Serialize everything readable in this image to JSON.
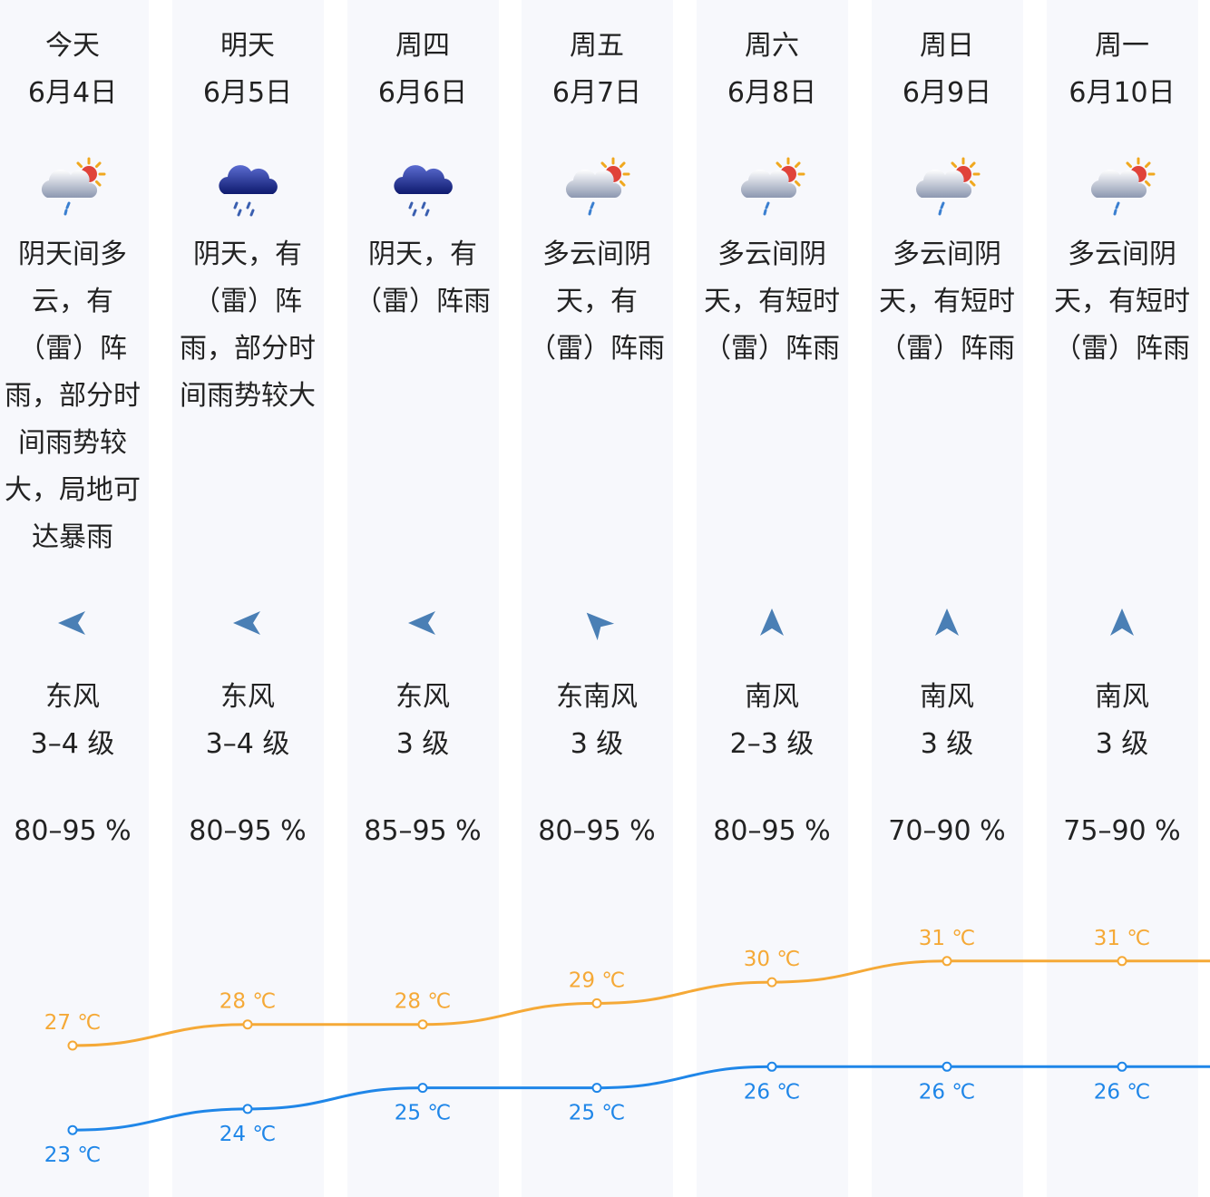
{
  "days": [
    {
      "day": "今天",
      "date": "6月4日",
      "icon": "thunder-shower-sun-icon",
      "desc": "阴天间多云，有（雷）阵雨，部分时间雨势较大，局地可达暴雨",
      "wind_dir": "东风",
      "wind_level": "3–4 级",
      "wind_arrow": "west-arrow-icon",
      "humidity": "80–95 %",
      "high": "27 ℃",
      "low": "23 ℃"
    },
    {
      "day": "明天",
      "date": "6月5日",
      "icon": "heavy-rain-cloud-icon",
      "desc": "阴天，有（雷）阵雨，部分时间雨势较大",
      "wind_dir": "东风",
      "wind_level": "3–4 级",
      "wind_arrow": "west-arrow-icon",
      "humidity": "80–95 %",
      "high": "28 ℃",
      "low": "24 ℃"
    },
    {
      "day": "周四",
      "date": "6月6日",
      "icon": "heavy-rain-cloud-icon",
      "desc": "阴天，有（雷）阵雨",
      "wind_dir": "东风",
      "wind_level": "3 级",
      "wind_arrow": "west-arrow-icon",
      "humidity": "85–95 %",
      "high": "28 ℃",
      "low": "25 ℃"
    },
    {
      "day": "周五",
      "date": "6月7日",
      "icon": "thunder-shower-sun-icon",
      "desc": "多云间阴天，有（雷）阵雨",
      "wind_dir": "东南风",
      "wind_level": "3 级",
      "wind_arrow": "northwest-arrow-icon",
      "humidity": "80–95 %",
      "high": "29 ℃",
      "low": "25 ℃"
    },
    {
      "day": "周六",
      "date": "6月8日",
      "icon": "thunder-shower-sun-icon",
      "desc": "多云间阴天，有短时（雷）阵雨",
      "wind_dir": "南风",
      "wind_level": "2–3 级",
      "wind_arrow": "north-arrow-icon",
      "humidity": "80–95 %",
      "high": "30 ℃",
      "low": "26 ℃"
    },
    {
      "day": "周日",
      "date": "6月9日",
      "icon": "thunder-shower-sun-icon",
      "desc": "多云间阴天，有短时（雷）阵雨",
      "wind_dir": "南风",
      "wind_level": "3 级",
      "wind_arrow": "north-arrow-icon",
      "humidity": "70–90 %",
      "high": "31 ℃",
      "low": "26 ℃"
    },
    {
      "day": "周一",
      "date": "6月10日",
      "icon": "thunder-shower-sun-icon",
      "desc": "多云间阴天，有短时（雷）阵雨",
      "wind_dir": "南风",
      "wind_level": "3 级",
      "wind_arrow": "north-arrow-icon",
      "humidity": "75–90 %",
      "high": "31 ℃",
      "low": "26 ℃"
    }
  ],
  "chart_data": {
    "type": "line",
    "x": [
      "6月4日",
      "6月5日",
      "6月6日",
      "6月7日",
      "6月8日",
      "6月9日",
      "6月10日"
    ],
    "series": [
      {
        "values": [
          27,
          28,
          28,
          29,
          30,
          31,
          31
        ],
        "color": "#f5a937"
      },
      {
        "values": [
          23,
          24,
          25,
          25,
          26,
          26,
          26
        ],
        "color": "#1f86e8"
      }
    ],
    "unit": "℃"
  },
  "colors": {
    "column_bg": "#f7f8fc",
    "high_line": "#f5a937",
    "low_line": "#1f86e8",
    "text": "#222222",
    "wind_arrow": "#4a7fb5"
  }
}
